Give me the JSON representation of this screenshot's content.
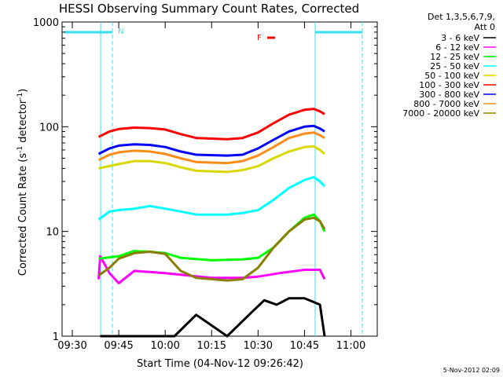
{
  "chart_data": {
    "type": "line",
    "title": "HESSI Observing Summary Count Rates, Corrected",
    "ylabel_main": "Corrected Count Rate (s",
    "ylabel_mid": " detector",
    "ylabel_end": ")",
    "ylabel_sup": "-1",
    "xlabel": "Start Time (04-Nov-12 09:26:42)",
    "yscale": "log",
    "ylim": [
      1,
      1000
    ],
    "xlim": [
      "09:26:42",
      "11:08:30"
    ],
    "x_ticks": [
      "09:30",
      "09:45",
      "10:00",
      "10:15",
      "10:30",
      "10:45",
      "11:00"
    ],
    "y_ticks": [
      "1",
      "10",
      "100",
      "1000"
    ],
    "legend_header_1": "Det 1,3,5,6,7,9,",
    "legend_header_2": "Att 0",
    "legend_position": "right",
    "flag_label": "F",
    "night_label": "N",
    "timestamp": "5-Nov-2012 02:09",
    "series": [
      {
        "name": "3 - 6 keV",
        "color": "#000000",
        "points": [
          [
            "09:39:00",
            1.0
          ],
          [
            "10:03:00",
            1.0
          ],
          [
            "10:10:00",
            1.6
          ],
          [
            "10:20:00",
            1.0
          ],
          [
            "10:28:00",
            1.7
          ],
          [
            "10:32:00",
            2.2
          ],
          [
            "10:36:00",
            2.0
          ],
          [
            "10:40:00",
            2.3
          ],
          [
            "10:45:00",
            2.3
          ],
          [
            "10:50:00",
            2.0
          ],
          [
            "10:51:30",
            1.0
          ]
        ]
      },
      {
        "name": "6 - 12 keV",
        "color": "#ff00ff",
        "points": [
          [
            "09:38:30",
            3.5
          ],
          [
            "09:39:00",
            5.8
          ],
          [
            "09:42:00",
            4.0
          ],
          [
            "09:45:00",
            3.2
          ],
          [
            "09:50:00",
            4.2
          ],
          [
            "10:00:00",
            4.0
          ],
          [
            "10:15:00",
            3.6
          ],
          [
            "10:25:00",
            3.6
          ],
          [
            "10:30:00",
            3.7
          ],
          [
            "10:37:00",
            4.0
          ],
          [
            "10:45:00",
            4.3
          ],
          [
            "10:50:00",
            4.3
          ],
          [
            "10:51:30",
            3.5
          ]
        ]
      },
      {
        "name": "12 - 25 keV",
        "color": "#00ff00",
        "points": [
          [
            "09:38:30",
            5.5
          ],
          [
            "09:45:00",
            5.8
          ],
          [
            "09:50:00",
            6.5
          ],
          [
            "09:55:00",
            6.4
          ],
          [
            "10:00:00",
            6.2
          ],
          [
            "10:05:00",
            5.6
          ],
          [
            "10:15:00",
            5.3
          ],
          [
            "10:25:00",
            5.4
          ],
          [
            "10:30:00",
            5.6
          ],
          [
            "10:35:00",
            7.0
          ],
          [
            "10:40:00",
            10.0
          ],
          [
            "10:45:00",
            13.5
          ],
          [
            "10:48:00",
            14.5
          ],
          [
            "10:50:00",
            12.5
          ],
          [
            "10:51:30",
            10.0
          ]
        ]
      },
      {
        "name": "25 - 50 keV",
        "color": "#00ffff",
        "points": [
          [
            "09:38:30",
            13.0
          ],
          [
            "09:42:00",
            15.5
          ],
          [
            "09:45:00",
            16.0
          ],
          [
            "09:50:00",
            16.5
          ],
          [
            "09:55:00",
            17.5
          ],
          [
            "10:00:00",
            16.5
          ],
          [
            "10:05:00",
            15.5
          ],
          [
            "10:10:00",
            14.5
          ],
          [
            "10:20:00",
            14.5
          ],
          [
            "10:25:00",
            15.0
          ],
          [
            "10:30:00",
            16.0
          ],
          [
            "10:35:00",
            20.0
          ],
          [
            "10:40:00",
            26.0
          ],
          [
            "10:45:00",
            31.0
          ],
          [
            "10:48:00",
            33.0
          ],
          [
            "10:50:00",
            30.0
          ],
          [
            "10:51:30",
            27.0
          ]
        ]
      },
      {
        "name": "50 - 100 keV",
        "color": "#d8d800",
        "points": [
          [
            "09:38:30",
            40.0
          ],
          [
            "09:45:00",
            44.0
          ],
          [
            "09:50:00",
            47.0
          ],
          [
            "09:55:00",
            47.0
          ],
          [
            "10:00:00",
            45.0
          ],
          [
            "10:05:00",
            41.0
          ],
          [
            "10:10:00",
            38.0
          ],
          [
            "10:20:00",
            37.0
          ],
          [
            "10:25:00",
            38.5
          ],
          [
            "10:30:00",
            42.0
          ],
          [
            "10:35:00",
            50.0
          ],
          [
            "10:40:00",
            58.0
          ],
          [
            "10:45:00",
            64.0
          ],
          [
            "10:48:00",
            65.0
          ],
          [
            "10:50:00",
            60.0
          ],
          [
            "10:51:30",
            55.0
          ]
        ]
      },
      {
        "name": "100 - 300 keV",
        "color": "#ff0000",
        "points": [
          [
            "09:38:30",
            80.0
          ],
          [
            "09:42:00",
            90.0
          ],
          [
            "09:45:00",
            95.0
          ],
          [
            "09:50:00",
            98.0
          ],
          [
            "09:55:00",
            97.0
          ],
          [
            "10:00:00",
            94.0
          ],
          [
            "10:05:00",
            85.0
          ],
          [
            "10:10:00",
            78.0
          ],
          [
            "10:20:00",
            76.0
          ],
          [
            "10:25:00",
            78.0
          ],
          [
            "10:30:00",
            88.0
          ],
          [
            "10:35:00",
            108.0
          ],
          [
            "10:40:00",
            130.0
          ],
          [
            "10:45:00",
            145.0
          ],
          [
            "10:48:00",
            148.0
          ],
          [
            "10:50:00",
            140.0
          ],
          [
            "10:51:30",
            132.0
          ]
        ]
      },
      {
        "name": "300 - 800 keV",
        "color": "#0000ff",
        "points": [
          [
            "09:38:30",
            55.0
          ],
          [
            "09:42:00",
            62.0
          ],
          [
            "09:45:00",
            66.0
          ],
          [
            "09:50:00",
            68.0
          ],
          [
            "09:55:00",
            67.0
          ],
          [
            "10:00:00",
            64.0
          ],
          [
            "10:05:00",
            58.0
          ],
          [
            "10:10:00",
            54.0
          ],
          [
            "10:20:00",
            53.0
          ],
          [
            "10:25:00",
            54.0
          ],
          [
            "10:30:00",
            62.0
          ],
          [
            "10:35:00",
            75.0
          ],
          [
            "10:40:00",
            90.0
          ],
          [
            "10:45:00",
            100.0
          ],
          [
            "10:48:00",
            102.0
          ],
          [
            "10:50:00",
            96.0
          ],
          [
            "10:51:30",
            90.0
          ]
        ]
      },
      {
        "name": "800 - 7000 keV",
        "color": "#ff8c1a",
        "points": [
          [
            "09:38:30",
            48.0
          ],
          [
            "09:42:00",
            54.0
          ],
          [
            "09:45:00",
            57.0
          ],
          [
            "09:50:00",
            59.0
          ],
          [
            "09:55:00",
            58.0
          ],
          [
            "10:00:00",
            55.0
          ],
          [
            "10:05:00",
            50.0
          ],
          [
            "10:10:00",
            46.0
          ],
          [
            "10:20:00",
            45.0
          ],
          [
            "10:25:00",
            47.0
          ],
          [
            "10:30:00",
            53.0
          ],
          [
            "10:35:00",
            64.0
          ],
          [
            "10:40:00",
            78.0
          ],
          [
            "10:45:00",
            86.0
          ],
          [
            "10:48:00",
            88.0
          ],
          [
            "10:50:00",
            83.0
          ],
          [
            "10:51:30",
            78.0
          ]
        ]
      },
      {
        "name": "7000 - 20000 keV",
        "color": "#8b7d00",
        "points": [
          [
            "09:38:30",
            3.8
          ],
          [
            "09:42:00",
            4.5
          ],
          [
            "09:45:00",
            5.5
          ],
          [
            "09:50:00",
            6.2
          ],
          [
            "09:55:00",
            6.4
          ],
          [
            "10:00:00",
            6.1
          ],
          [
            "10:05:00",
            4.2
          ],
          [
            "10:10:00",
            3.6
          ],
          [
            "10:20:00",
            3.4
          ],
          [
            "10:25:00",
            3.5
          ],
          [
            "10:30:00",
            4.5
          ],
          [
            "10:35:00",
            7.0
          ],
          [
            "10:40:00",
            10.0
          ],
          [
            "10:45:00",
            13.0
          ],
          [
            "10:48:00",
            13.5
          ],
          [
            "10:50:00",
            12.5
          ],
          [
            "10:51:30",
            10.5
          ]
        ]
      }
    ]
  }
}
